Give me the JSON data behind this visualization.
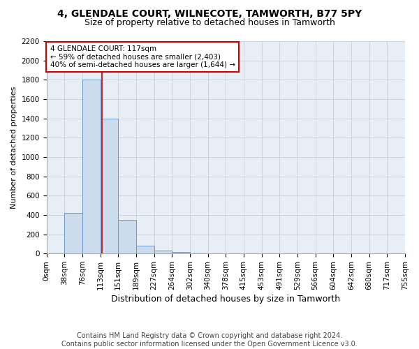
{
  "title1": "4, GLENDALE COURT, WILNECOTE, TAMWORTH, B77 5PY",
  "title2": "Size of property relative to detached houses in Tamworth",
  "xlabel": "Distribution of detached houses by size in Tamworth",
  "ylabel": "Number of detached properties",
  "footer1": "Contains HM Land Registry data © Crown copyright and database right 2024.",
  "footer2": "Contains public sector information licensed under the Open Government Licence v3.0.",
  "annotation_line1": "4 GLENDALE COURT: 117sqm",
  "annotation_line2": "← 59% of detached houses are smaller (2,403)",
  "annotation_line3": "40% of semi-detached houses are larger (1,644) →",
  "bar_values": [
    5,
    420,
    1800,
    1400,
    350,
    80,
    30,
    15,
    5,
    3,
    2,
    1,
    1,
    0,
    0,
    0,
    0,
    0,
    0,
    0
  ],
  "bin_labels": [
    "0sqm",
    "38sqm",
    "76sqm",
    "113sqm",
    "151sqm",
    "189sqm",
    "227sqm",
    "264sqm",
    "302sqm",
    "340sqm",
    "378sqm",
    "415sqm",
    "453sqm",
    "491sqm",
    "529sqm",
    "566sqm",
    "604sqm",
    "642sqm",
    "680sqm",
    "717sqm",
    "755sqm"
  ],
  "bar_color": "#ccdcec",
  "bar_edge_color": "#6699cc",
  "marker_color": "#cc0000",
  "grid_color": "#c8d0dc",
  "background_color": "#e8eef6",
  "annotation_box_color": "#cc0000",
  "annotation_box_bg": "#ffffff",
  "ylim": [
    0,
    2200
  ],
  "yticks": [
    0,
    200,
    400,
    600,
    800,
    1000,
    1200,
    1400,
    1600,
    1800,
    2000,
    2200
  ],
  "title1_fontsize": 10,
  "title2_fontsize": 9,
  "ylabel_fontsize": 8,
  "xlabel_fontsize": 9,
  "tick_fontsize": 7.5,
  "footer_fontsize": 7
}
